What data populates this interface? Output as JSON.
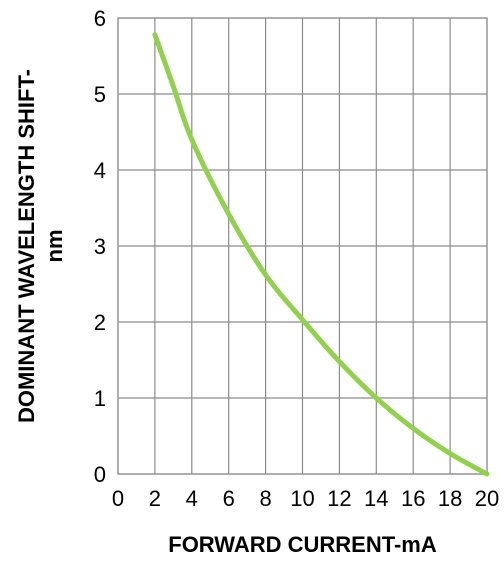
{
  "chart_data": {
    "type": "line",
    "title": "",
    "xlabel": "FORWARD CURRENT-mA",
    "ylabel_lines": [
      "DOMINANT WAVELENGTH SHIFT-",
      "nm"
    ],
    "xlim": [
      0,
      20
    ],
    "ylim": [
      0,
      6
    ],
    "x_ticks": [
      "0",
      "2",
      "4",
      "6",
      "8",
      "10",
      "12",
      "14",
      "16",
      "18",
      "20"
    ],
    "y_ticks": [
      "0",
      "1",
      "2",
      "3",
      "4",
      "5",
      "6"
    ],
    "grid": true,
    "series": [
      {
        "color": "#92d050",
        "x": [
          2,
          3,
          4,
          6,
          8,
          10,
          12,
          14,
          16,
          18,
          20
        ],
        "y": [
          5.78,
          5.1,
          4.4,
          3.42,
          2.62,
          2.03,
          1.48,
          1.0,
          0.6,
          0.27,
          0.0
        ]
      }
    ]
  }
}
